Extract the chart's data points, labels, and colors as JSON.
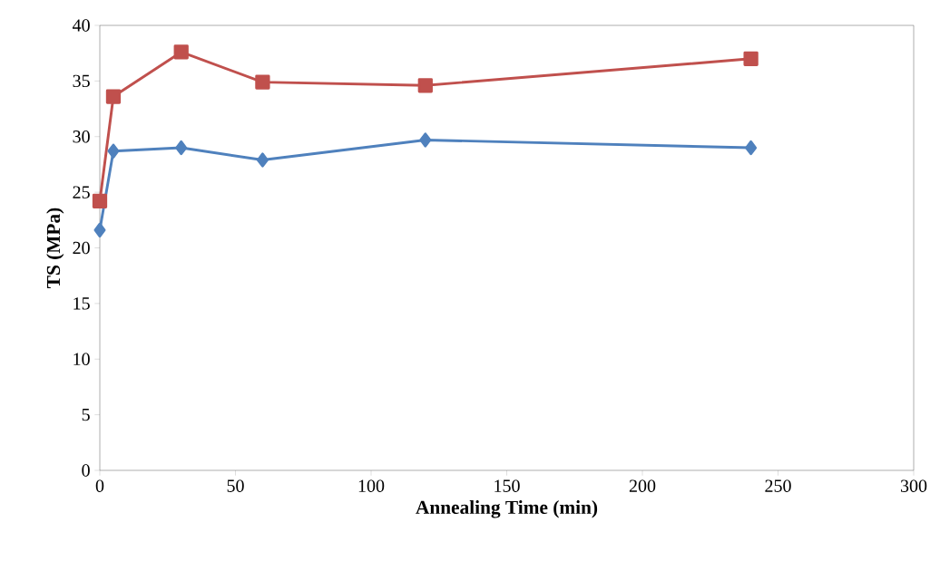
{
  "chart_data": {
    "type": "line",
    "xlabel": "Annealing Time (min)",
    "ylabel": "TS (MPa)",
    "xlim": [
      0,
      300
    ],
    "xticks": [
      0,
      50,
      100,
      150,
      200,
      250,
      300
    ],
    "ylim": [
      0,
      40
    ],
    "yticks": [
      0,
      5,
      10,
      15,
      20,
      25,
      30,
      35,
      40
    ],
    "grid": false,
    "line_style": "solid",
    "series": [
      {
        "color": "#c0504d",
        "marker": "square",
        "x": [
          0,
          5,
          30,
          60,
          120,
          240
        ],
        "values": [
          24.2,
          33.6,
          37.6,
          34.9,
          34.6,
          37.0
        ]
      },
      {
        "color": "#4f81bd",
        "marker": "diamond",
        "x": [
          0,
          5,
          30,
          60,
          120,
          240
        ],
        "values": [
          21.6,
          28.7,
          29.0,
          27.9,
          29.7,
          29.0
        ]
      }
    ]
  }
}
